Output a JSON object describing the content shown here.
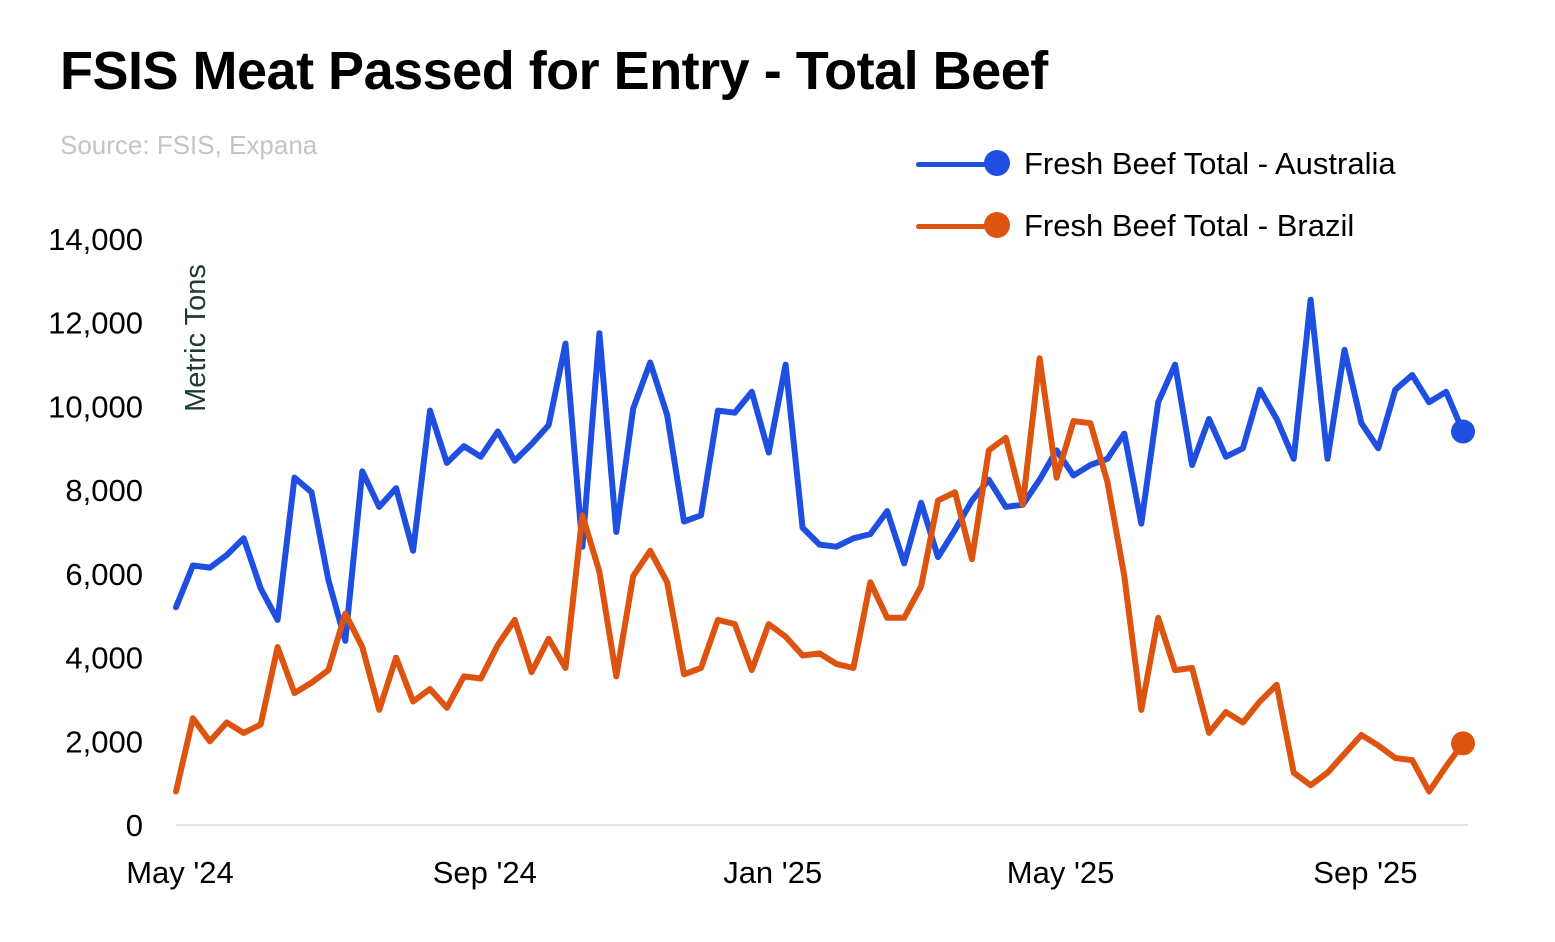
{
  "chart_data": {
    "type": "line",
    "title": "FSIS Meat Passed for Entry - Total Beef",
    "subtitle": "Source: FSIS, Expana",
    "ylabel": "Metric Tons",
    "xlabel": "",
    "ylim": [
      0,
      14000
    ],
    "yticks": [
      0,
      2000,
      4000,
      6000,
      8000,
      10000,
      12000,
      14000
    ],
    "ytick_labels": [
      "0",
      "2,000",
      "4,000",
      "6,000",
      "8,000",
      "10,000",
      "12,000",
      "14,000"
    ],
    "xticks": [
      {
        "index": 0,
        "label": "May '24"
      },
      {
        "index": 18,
        "label": "Sep '24"
      },
      {
        "index": 35,
        "label": "Jan '25"
      },
      {
        "index": 52,
        "label": "May '25"
      },
      {
        "index": 70,
        "label": "Sep '25"
      }
    ],
    "x_count": 77,
    "grid": false,
    "legend_position": "top-right",
    "series": [
      {
        "name": "Fresh Beef Total - Australia",
        "color": "#1f4fe0",
        "values": [
          5200,
          6200,
          6150,
          6450,
          6850,
          5650,
          4900,
          8300,
          7950,
          5850,
          4400,
          8450,
          7600,
          8050,
          6550,
          9900,
          8650,
          9050,
          8800,
          9400,
          8700,
          9100,
          9550,
          11500,
          6650,
          11750,
          7000,
          9950,
          11050,
          9800,
          7250,
          7400,
          9900,
          9850,
          10350,
          8900,
          11000,
          7100,
          6700,
          6650,
          6850,
          6950,
          7500,
          6250,
          7700,
          6400,
          7050,
          7750,
          8250,
          7600,
          7650,
          8250,
          8950,
          8350,
          8600,
          8750,
          9350,
          7200,
          10100,
          11000,
          8600,
          9700,
          8800,
          9000,
          10400,
          9700,
          8750,
          12550,
          8750,
          11350,
          9600,
          9000,
          10400,
          10750,
          10100,
          10350,
          9400
        ]
      },
      {
        "name": "Fresh Beef Total - Brazil",
        "color": "#dc5410",
        "values": [
          800,
          2550,
          2000,
          2450,
          2200,
          2400,
          4250,
          3150,
          3400,
          3700,
          5050,
          4250,
          2750,
          4000,
          2950,
          3250,
          2800,
          3550,
          3500,
          4300,
          4900,
          3650,
          4450,
          3750,
          7400,
          6050,
          3550,
          5950,
          6550,
          5800,
          3600,
          3750,
          4900,
          4800,
          3700,
          4800,
          4500,
          4050,
          4100,
          3850,
          3750,
          5800,
          4950,
          4950,
          5700,
          7750,
          7950,
          6350,
          8950,
          9250,
          7650,
          11150,
          8300,
          9650,
          9600,
          8200,
          5950,
          2750,
          4950,
          3700,
          3750,
          2200,
          2700,
          2450,
          2950,
          3350,
          1250,
          950,
          1250,
          1700,
          2150,
          1900,
          1600,
          1550,
          800,
          1400,
          1950
        ]
      }
    ]
  }
}
